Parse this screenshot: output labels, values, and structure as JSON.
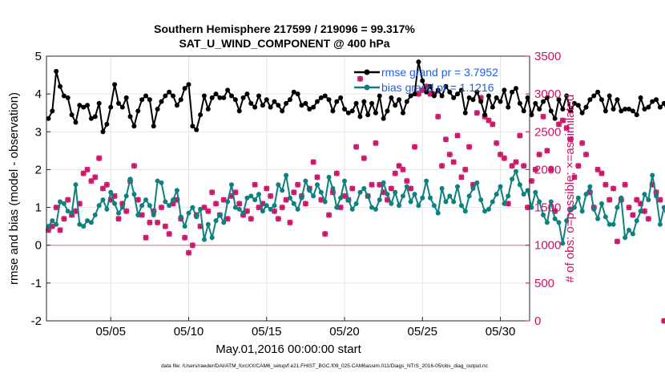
{
  "chart_data": {
    "type": "line",
    "title": "Southern Hemisphere 217599 / 219096 = 99.317%",
    "subtitle": "SAT_U_WIND_COMPONENT @ 400 hPa",
    "xlabel": "May.01,2016 00:00:00 start",
    "ylabel_left": "rmse and bias (model - observation)",
    "ylabel_right": "# of obs: o=possible; ×=assimilated",
    "x_ticks": [
      "05/05",
      "05/10",
      "05/15",
      "05/20",
      "05/25",
      "05/30"
    ],
    "x_tick_days": [
      5,
      10,
      15,
      20,
      25,
      30
    ],
    "xlim": [
      0.875,
      31.875
    ],
    "y_left_ticks": [
      "-2",
      "-1",
      "0",
      "1",
      "2",
      "3",
      "4",
      "5"
    ],
    "ylim_left": [
      -2,
      5
    ],
    "y_right_ticks": [
      "0",
      "500",
      "1000",
      "1500",
      "2000",
      "2500",
      "3000",
      "3500"
    ],
    "ylim_right": [
      0,
      3500
    ],
    "grid": true,
    "zero_line": 0,
    "legend": {
      "placement": "top-right",
      "entries": [
        "rmse grand pr = 3.7952",
        "bias grand pr = 1.1216"
      ]
    },
    "footer": "data file: /Users/raeder/DAI/ATM_forcXX/CAM6_setup/f.e21.FHIST_BGC.f09_025.CAM6assim.011/Diags_NTrS_2016-05/obs_diag_output.nc",
    "x_step_days": 0.25,
    "x_start_day": 1.0,
    "series": [
      {
        "name": "rmse grand pr = 3.7952",
        "axis": "left",
        "color": "#000000",
        "marker": "dot",
        "values": [
          3.35,
          3.55,
          4.6,
          4.2,
          3.95,
          3.9,
          3.45,
          3.25,
          3.7,
          3.65,
          3.7,
          3.35,
          3.4,
          3.75,
          3.0,
          3.2,
          3.65,
          4.25,
          3.75,
          3.65,
          3.9,
          3.4,
          3.15,
          3.55,
          3.85,
          3.95,
          3.85,
          3.15,
          3.6,
          3.8,
          3.95,
          4.05,
          3.95,
          3.7,
          3.85,
          4.15,
          4.25,
          3.15,
          3.05,
          3.45,
          3.95,
          3.6,
          3.9,
          4.0,
          3.9,
          3.9,
          4.1,
          3.95,
          3.85,
          3.55,
          3.9,
          4.0,
          3.75,
          3.65,
          3.95,
          3.7,
          3.85,
          3.65,
          3.8,
          3.7,
          3.55,
          3.75,
          3.85,
          4.05,
          4.0,
          3.7,
          3.75,
          3.6,
          3.65,
          3.8,
          3.9,
          3.95,
          3.85,
          3.55,
          3.8,
          3.9,
          3.6,
          3.5,
          3.55,
          3.75,
          3.4,
          3.8,
          3.45,
          3.75,
          3.5,
          3.95,
          3.35,
          3.55,
          3.9,
          3.7,
          3.85,
          3.5,
          3.8,
          3.95,
          4.0,
          4.85,
          4.35,
          4.05,
          4.2,
          3.95,
          4.1,
          3.95,
          4.2,
          4.05,
          3.9,
          4.0,
          4.1,
          3.5,
          3.9,
          3.85,
          4.05,
          3.8,
          3.45,
          3.95,
          3.65,
          3.9,
          3.8,
          4.1,
          3.65,
          4.05,
          4.15,
          3.75,
          3.55,
          3.9,
          3.45,
          3.75,
          3.6,
          3.8,
          3.9,
          3.55,
          3.35,
          3.85,
          3.6,
          3.95,
          3.55,
          3.75,
          3.7,
          3.5,
          3.65,
          3.85,
          3.95,
          4.05,
          3.85,
          3.55,
          3.95,
          3.6,
          3.85,
          3.55,
          3.6,
          3.6,
          3.55,
          3.45,
          3.9,
          3.6,
          3.65,
          3.8,
          3.85,
          3.65,
          3.75,
          3.5
        ]
      },
      {
        "name": "bias grand pr = 1.1216",
        "axis": "left",
        "color": "#0d8080",
        "marker": "dot",
        "values": [
          0.5,
          0.65,
          0.55,
          1.15,
          1.1,
          0.9,
          0.85,
          1.6,
          0.55,
          0.5,
          0.65,
          0.6,
          0.8,
          1.05,
          1.2,
          0.95,
          1.4,
          1.1,
          0.85,
          1.0,
          1.3,
          1.75,
          1.35,
          0.8,
          1.05,
          1.2,
          1.05,
          0.8,
          1.7,
          1.65,
          1.15,
          1.05,
          1.2,
          1.45,
          0.75,
          0.5,
          0.85,
          1.0,
          0.75,
          0.95,
          0.15,
          0.55,
          0.2,
          0.65,
          0.8,
          0.6,
          1.15,
          1.6,
          1.0,
          0.95,
          0.85,
          1.25,
          1.3,
          1.2,
          1.35,
          0.9,
          1.05,
          0.95,
          1.05,
          1.6,
          1.45,
          1.85,
          1.25,
          1.1,
          0.95,
          1.25,
          1.7,
          1.45,
          1.3,
          1.6,
          1.4,
          1.15,
          1.8,
          1.5,
          1.0,
          1.25,
          1.7,
          1.2,
          0.95,
          1.1,
          1.4,
          1.5,
          1.3,
          1.0,
          0.95,
          1.2,
          1.65,
          1.35,
          1.1,
          1.4,
          1.05,
          1.3,
          1.55,
          1.15,
          1.35,
          1.05,
          1.25,
          1.7,
          1.25,
          1.05,
          0.85,
          1.5,
          1.15,
          1.3,
          1.15,
          1.55,
          1.05,
          0.9,
          1.3,
          1.5,
          1.65,
          1.2,
          0.9,
          0.95,
          1.15,
          1.35,
          1.55,
          1.1,
          1.3,
          1.75,
          1.95,
          1.6,
          1.35,
          1.45,
          1.0,
          1.4,
          1.15,
          0.8,
          0.6,
          1.15,
          0.7,
          0.6,
          0.05,
          0.65,
          0.95,
          1.0,
          1.25,
          0.9,
          1.35,
          1.55,
          0.95,
          0.7,
          1.1,
          0.75,
          0.55,
          0.55,
          1.0,
          1.25,
          0.2,
          0.4,
          0.3,
          0.65,
          0.9,
          1.35,
          1.2,
          1.85,
          1.3,
          0.55,
          1.0,
          0.6,
          0.95,
          1.0
        ]
      },
      {
        "name": "# of obs possible",
        "axis": "right",
        "color": "#cc1166",
        "marker": "circle",
        "values": [
          1200,
          1250,
          1500,
          1200,
          1350,
          1600,
          1400,
          1450,
          1550,
          1950,
          2000,
          1850,
          1900,
          2150,
          1750,
          1800,
          1600,
          1650,
          1350,
          1550,
          1450,
          1850,
          2050,
          1600,
          1400,
          1100,
          1300,
          1450,
          1300,
          1500,
          1250,
          1150,
          1550,
          1600,
          1350,
          1100,
          900,
          1000,
          1400,
          1250,
          1500,
          1450,
          1700,
          1550,
          1400,
          1600,
          1350,
          1650,
          1700,
          1550,
          1400,
          1450,
          1350,
          1800,
          1500,
          1550,
          1750,
          1650,
          1450,
          1350,
          1500,
          1600,
          1300,
          1700,
          1800,
          1650,
          1550,
          1750,
          2100,
          1900,
          1600,
          1150,
          1400,
          1700,
          1950,
          1500,
          1650,
          1600,
          1750,
          2300,
          3200,
          2150,
          1650,
          1800,
          2350,
          1800,
          1700,
          1600,
          1750,
          1950,
          2050,
          2000,
          1850,
          1750,
          2300,
          3000,
          3050,
          3100,
          3000,
          3000,
          2700,
          2050,
          2400,
          2200,
          2100,
          2450,
          1900,
          2000,
          2300,
          1800,
          2750,
          2950,
          2700,
          2650,
          2600,
          2350,
          2200,
          2150,
          1550,
          2050,
          2100,
          2450,
          2050,
          1500,
          1850,
          2000,
          2200,
          2700,
          2250,
          2000,
          1450,
          2600,
          2650,
          2550,
          2400,
          1900,
          2050,
          2350,
          2200,
          1700,
          1500,
          2000,
          1950,
          1800,
          1600,
          1750,
          1050,
          1600,
          1800,
          1500,
          1400,
          1600,
          1550,
          1450,
          1350,
          1800,
          1700,
          1600,
          0
        ]
      },
      {
        "name": "# of obs assimilated",
        "axis": "right",
        "color": "#cc1166",
        "marker": "x",
        "values": [
          1200,
          1250,
          1500,
          1200,
          1350,
          1600,
          1400,
          1450,
          1550,
          1950,
          2000,
          1850,
          1900,
          2150,
          1750,
          1800,
          1600,
          1650,
          1350,
          1550,
          1450,
          1850,
          2050,
          1600,
          1400,
          1100,
          1300,
          1450,
          1300,
          1500,
          1250,
          1150,
          1550,
          1600,
          1350,
          1100,
          900,
          1000,
          1400,
          1250,
          1500,
          1450,
          1700,
          1550,
          1400,
          1600,
          1350,
          1650,
          1700,
          1550,
          1400,
          1450,
          1350,
          1800,
          1500,
          1550,
          1750,
          1650,
          1450,
          1350,
          1500,
          1600,
          1300,
          1700,
          1800,
          1650,
          1550,
          1750,
          2100,
          1900,
          1600,
          1150,
          1400,
          1700,
          1950,
          1500,
          1650,
          1600,
          1750,
          2300,
          3200,
          2150,
          1650,
          1800,
          2350,
          1800,
          1700,
          1600,
          1750,
          1950,
          2050,
          2000,
          1850,
          1750,
          2300,
          3000,
          3050,
          3100,
          3000,
          3000,
          2700,
          2050,
          2400,
          2200,
          2100,
          2450,
          1900,
          2000,
          2300,
          1800,
          2750,
          2950,
          2700,
          2650,
          2600,
          2350,
          2200,
          2150,
          1550,
          2050,
          2100,
          2450,
          2050,
          1500,
          1850,
          2000,
          2200,
          2700,
          2250,
          2000,
          1450,
          2600,
          2650,
          2550,
          2400,
          1900,
          2050,
          2350,
          2200,
          1700,
          1500,
          2000,
          1950,
          1800,
          1600,
          1750,
          1050,
          1600,
          1800,
          1500,
          1400,
          1600,
          1550,
          1450,
          1350,
          1800,
          1700,
          1600,
          0
        ]
      }
    ]
  }
}
